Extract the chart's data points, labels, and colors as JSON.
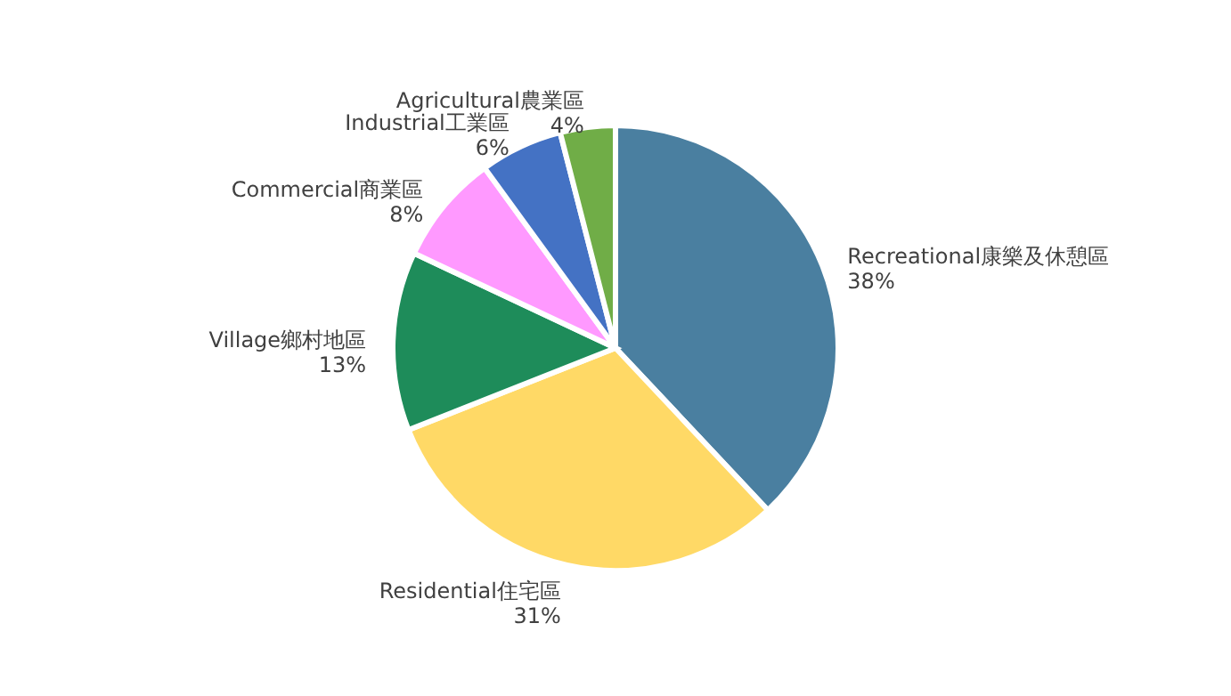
{
  "chart_data": {
    "type": "pie",
    "categories": [
      "Recreational康樂及休憩區",
      "Residential住宅區",
      "Village鄉村地區",
      "Commercial商業區",
      "Industrial工業區",
      "Agricultural農業區"
    ],
    "values": [
      38,
      31,
      13,
      8,
      6,
      4
    ],
    "value_labels": [
      "38%",
      "31%",
      "13%",
      "8%",
      "6%",
      "4%"
    ],
    "colors": [
      "#4a7fa0",
      "#ffd966",
      "#1e8c5a",
      "#ff99ff",
      "#4472c4",
      "#70ad47"
    ],
    "legend": false
  }
}
